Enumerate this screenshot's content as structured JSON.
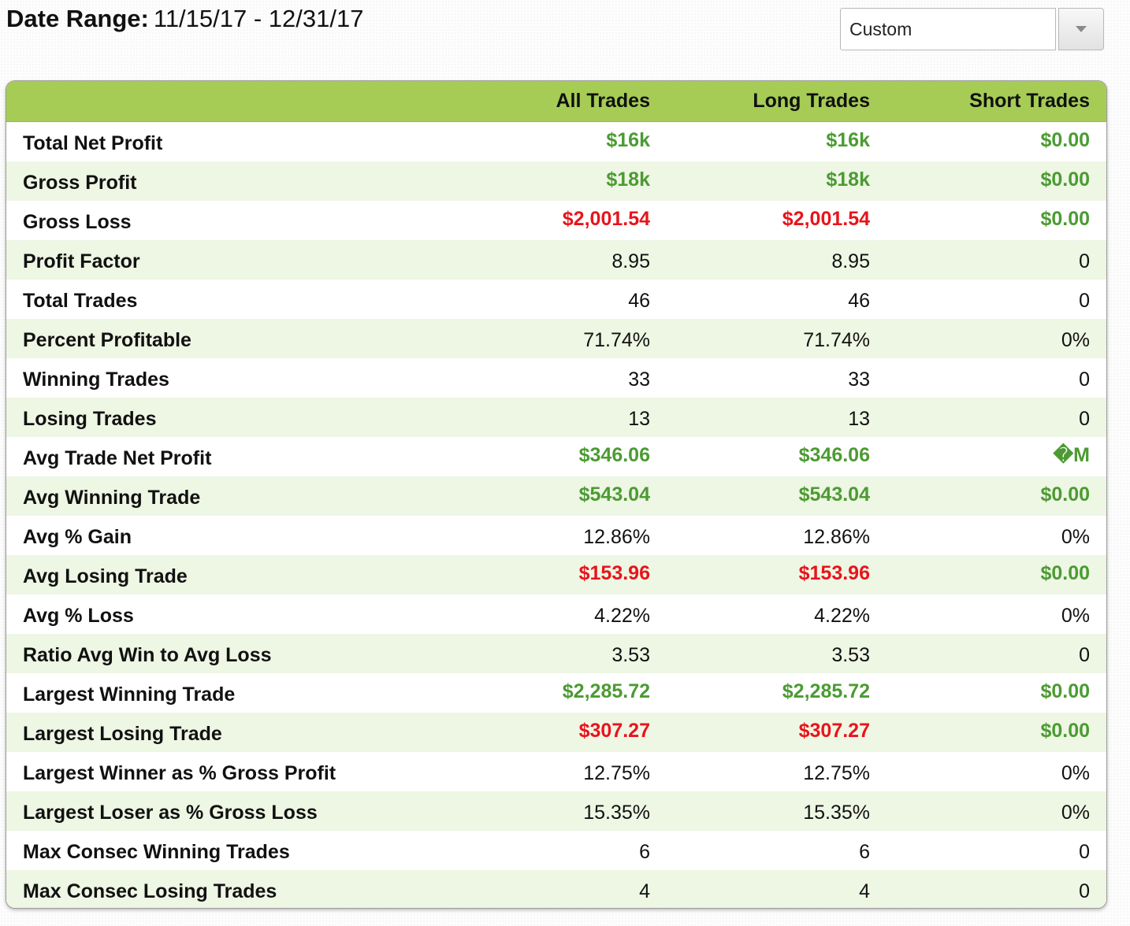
{
  "header": {
    "date_range_label": "Date Range:",
    "date_range_value": "11/15/17 - 12/31/17"
  },
  "range_select": {
    "selected": "Custom",
    "icon": "chevron-down-icon"
  },
  "colors": {
    "header_bg": "#a6cc55",
    "alt_row_bg": "#eef6e4",
    "positive": "#4b9b32",
    "negative": "#e8141b"
  },
  "table": {
    "columns": [
      "All Trades",
      "Long Trades",
      "Short Trades"
    ],
    "rows": [
      {
        "label": "Total Net Profit",
        "values": [
          {
            "text": "$16k",
            "tone": "green"
          },
          {
            "text": "$16k",
            "tone": "green"
          },
          {
            "text": "$0.00",
            "tone": "green"
          }
        ]
      },
      {
        "label": "Gross Profit",
        "values": [
          {
            "text": "$18k",
            "tone": "green"
          },
          {
            "text": "$18k",
            "tone": "green"
          },
          {
            "text": "$0.00",
            "tone": "green"
          }
        ]
      },
      {
        "label": "Gross Loss",
        "values": [
          {
            "text": "$2,001.54",
            "tone": "red"
          },
          {
            "text": "$2,001.54",
            "tone": "red"
          },
          {
            "text": "$0.00",
            "tone": "green"
          }
        ]
      },
      {
        "label": "Profit Factor",
        "values": [
          {
            "text": "8.95",
            "tone": "plain"
          },
          {
            "text": "8.95",
            "tone": "plain"
          },
          {
            "text": "0",
            "tone": "plain"
          }
        ]
      },
      {
        "label": "Total Trades",
        "values": [
          {
            "text": "46",
            "tone": "plain"
          },
          {
            "text": "46",
            "tone": "plain"
          },
          {
            "text": "0",
            "tone": "plain"
          }
        ]
      },
      {
        "label": "Percent Profitable",
        "values": [
          {
            "text": "71.74%",
            "tone": "plain"
          },
          {
            "text": "71.74%",
            "tone": "plain"
          },
          {
            "text": "0%",
            "tone": "plain"
          }
        ]
      },
      {
        "label": "Winning Trades",
        "values": [
          {
            "text": "33",
            "tone": "plain"
          },
          {
            "text": "33",
            "tone": "plain"
          },
          {
            "text": "0",
            "tone": "plain"
          }
        ]
      },
      {
        "label": "Losing Trades",
        "values": [
          {
            "text": "13",
            "tone": "plain"
          },
          {
            "text": "13",
            "tone": "plain"
          },
          {
            "text": "0",
            "tone": "plain"
          }
        ]
      },
      {
        "label": "Avg Trade Net Profit",
        "values": [
          {
            "text": "$346.06",
            "tone": "green"
          },
          {
            "text": "$346.06",
            "tone": "green"
          },
          {
            "text": "�M",
            "tone": "green"
          }
        ]
      },
      {
        "label": "Avg Winning Trade",
        "values": [
          {
            "text": "$543.04",
            "tone": "green"
          },
          {
            "text": "$543.04",
            "tone": "green"
          },
          {
            "text": "$0.00",
            "tone": "green"
          }
        ]
      },
      {
        "label": "Avg % Gain",
        "values": [
          {
            "text": "12.86%",
            "tone": "plain"
          },
          {
            "text": "12.86%",
            "tone": "plain"
          },
          {
            "text": "0%",
            "tone": "plain"
          }
        ]
      },
      {
        "label": "Avg Losing Trade",
        "values": [
          {
            "text": "$153.96",
            "tone": "red"
          },
          {
            "text": "$153.96",
            "tone": "red"
          },
          {
            "text": "$0.00",
            "tone": "green"
          }
        ]
      },
      {
        "label": "Avg % Loss",
        "values": [
          {
            "text": "4.22%",
            "tone": "plain"
          },
          {
            "text": "4.22%",
            "tone": "plain"
          },
          {
            "text": "0%",
            "tone": "plain"
          }
        ]
      },
      {
        "label": "Ratio Avg Win to Avg Loss",
        "values": [
          {
            "text": "3.53",
            "tone": "plain"
          },
          {
            "text": "3.53",
            "tone": "plain"
          },
          {
            "text": "0",
            "tone": "plain"
          }
        ]
      },
      {
        "label": "Largest Winning Trade",
        "values": [
          {
            "text": "$2,285.72",
            "tone": "green"
          },
          {
            "text": "$2,285.72",
            "tone": "green"
          },
          {
            "text": "$0.00",
            "tone": "green"
          }
        ]
      },
      {
        "label": "Largest Losing Trade",
        "values": [
          {
            "text": "$307.27",
            "tone": "red"
          },
          {
            "text": "$307.27",
            "tone": "red"
          },
          {
            "text": "$0.00",
            "tone": "green"
          }
        ]
      },
      {
        "label": "Largest Winner as % Gross Profit",
        "values": [
          {
            "text": "12.75%",
            "tone": "plain"
          },
          {
            "text": "12.75%",
            "tone": "plain"
          },
          {
            "text": "0%",
            "tone": "plain"
          }
        ]
      },
      {
        "label": "Largest Loser as % Gross Loss",
        "values": [
          {
            "text": "15.35%",
            "tone": "plain"
          },
          {
            "text": "15.35%",
            "tone": "plain"
          },
          {
            "text": "0%",
            "tone": "plain"
          }
        ]
      },
      {
        "label": "Max Consec Winning Trades",
        "values": [
          {
            "text": "6",
            "tone": "plain"
          },
          {
            "text": "6",
            "tone": "plain"
          },
          {
            "text": "0",
            "tone": "plain"
          }
        ]
      },
      {
        "label": "Max Consec Losing Trades",
        "values": [
          {
            "text": "4",
            "tone": "plain"
          },
          {
            "text": "4",
            "tone": "plain"
          },
          {
            "text": "0",
            "tone": "plain"
          }
        ]
      }
    ]
  }
}
